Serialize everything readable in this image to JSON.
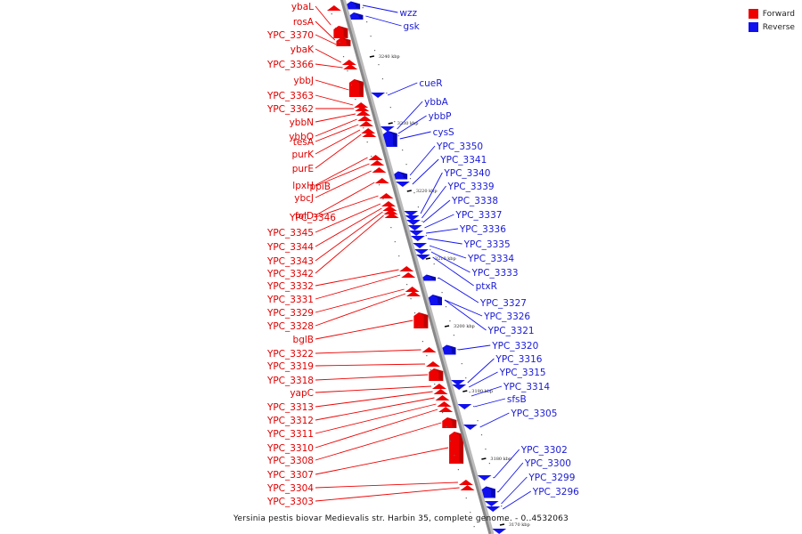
{
  "legend": {
    "forward_label": "Forward",
    "reverse_label": "Reverse",
    "forward_color": "#ee0000",
    "reverse_color": "#1010ee"
  },
  "caption": "Yersinia pestis biovar Medievalis str. Harbin 35, complete genome. - 0..4532063",
  "scale": [
    "3240 kbp",
    "3230 kbp",
    "3220 kbp",
    "3210 kbp",
    "3200 kbp",
    "3190 kbp",
    "3180 kbp",
    "3170 kbp"
  ],
  "forward_genes": [
    "ybaL",
    "rosA",
    "YPC_3370",
    "ybaK",
    "YPC_3366",
    "ybbJ",
    "YPC_3363",
    "YPC_3362",
    "ybbN",
    "ybbO",
    "tesA",
    "purK",
    "purE",
    "lpxH",
    "ppiB",
    "ybcJ",
    "folD",
    "YPC_3346",
    "YPC_3345",
    "YPC_3344",
    "YPC_3343",
    "YPC_3342",
    "YPC_3332",
    "YPC_3331",
    "YPC_3329",
    "YPC_3328",
    "bglB",
    "YPC_3322",
    "YPC_3319",
    "YPC_3318",
    "yapC",
    "YPC_3313",
    "YPC_3312",
    "YPC_3311",
    "YPC_3310",
    "YPC_3308",
    "YPC_3307",
    "YPC_3304",
    "YPC_3303"
  ],
  "reverse_genes": [
    "wzz",
    "gsk",
    "cueR",
    "ybbA",
    "ybbP",
    "cysS",
    "YPC_3350",
    "YPC_3341",
    "YPC_3340",
    "YPC_3339",
    "YPC_3338",
    "YPC_3337",
    "YPC_3336",
    "YPC_3335",
    "YPC_3334",
    "YPC_3333",
    "ptxR",
    "YPC_3327",
    "YPC_3326",
    "YPC_3321",
    "YPC_3320",
    "YPC_3316",
    "YPC_3315",
    "YPC_3314",
    "sfsB",
    "YPC_3305",
    "YPC_3302",
    "YPC_3300",
    "YPC_3299",
    "YPC_3296"
  ]
}
